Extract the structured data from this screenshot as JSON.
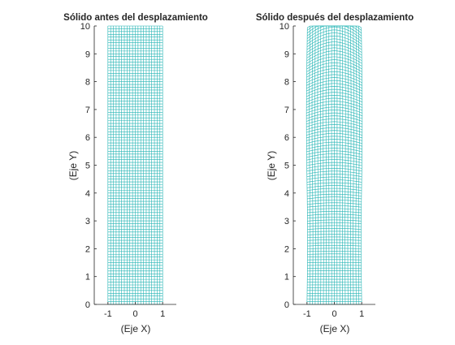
{
  "colors": {
    "mesh": "#26b5b5",
    "axes": "#262626",
    "background": "#ffffff"
  },
  "chart_data": [
    {
      "type": "mesh",
      "title": "Sólido antes del desplazamiento",
      "xlabel": "(Eje X)",
      "ylabel": "(Eje Y)",
      "xlim": [
        -1.5,
        1.5
      ],
      "ylim": [
        0,
        10
      ],
      "xticks": [
        -1,
        0,
        1
      ],
      "yticks": [
        0,
        1,
        2,
        3,
        4,
        5,
        6,
        7,
        8,
        9,
        10
      ],
      "grid": false,
      "mesh": {
        "x_range": [
          -1,
          1
        ],
        "y_range": [
          0,
          10
        ],
        "nx": 20,
        "ny": 100,
        "deformed": false,
        "top_bulge": 0,
        "bulge_amplitude": 0,
        "bulge_period": 0
      }
    },
    {
      "type": "mesh",
      "title": "Sólido después del desplazamiento",
      "xlabel": "(Eje X)",
      "ylabel": "(Eje Y)",
      "xlim": [
        -1.5,
        1.5
      ],
      "ylim": [
        0,
        10
      ],
      "xticks": [
        -1,
        0,
        1
      ],
      "yticks": [
        0,
        1,
        2,
        3,
        4,
        5,
        6,
        7,
        8,
        9,
        10
      ],
      "grid": false,
      "mesh": {
        "x_range": [
          -1,
          1
        ],
        "y_range": [
          0,
          10
        ],
        "nx": 20,
        "ny": 100,
        "deformed": true,
        "top_bulge": 0.4,
        "bulge_amplitude": 0.08,
        "bulge_period": 4.5
      }
    }
  ]
}
